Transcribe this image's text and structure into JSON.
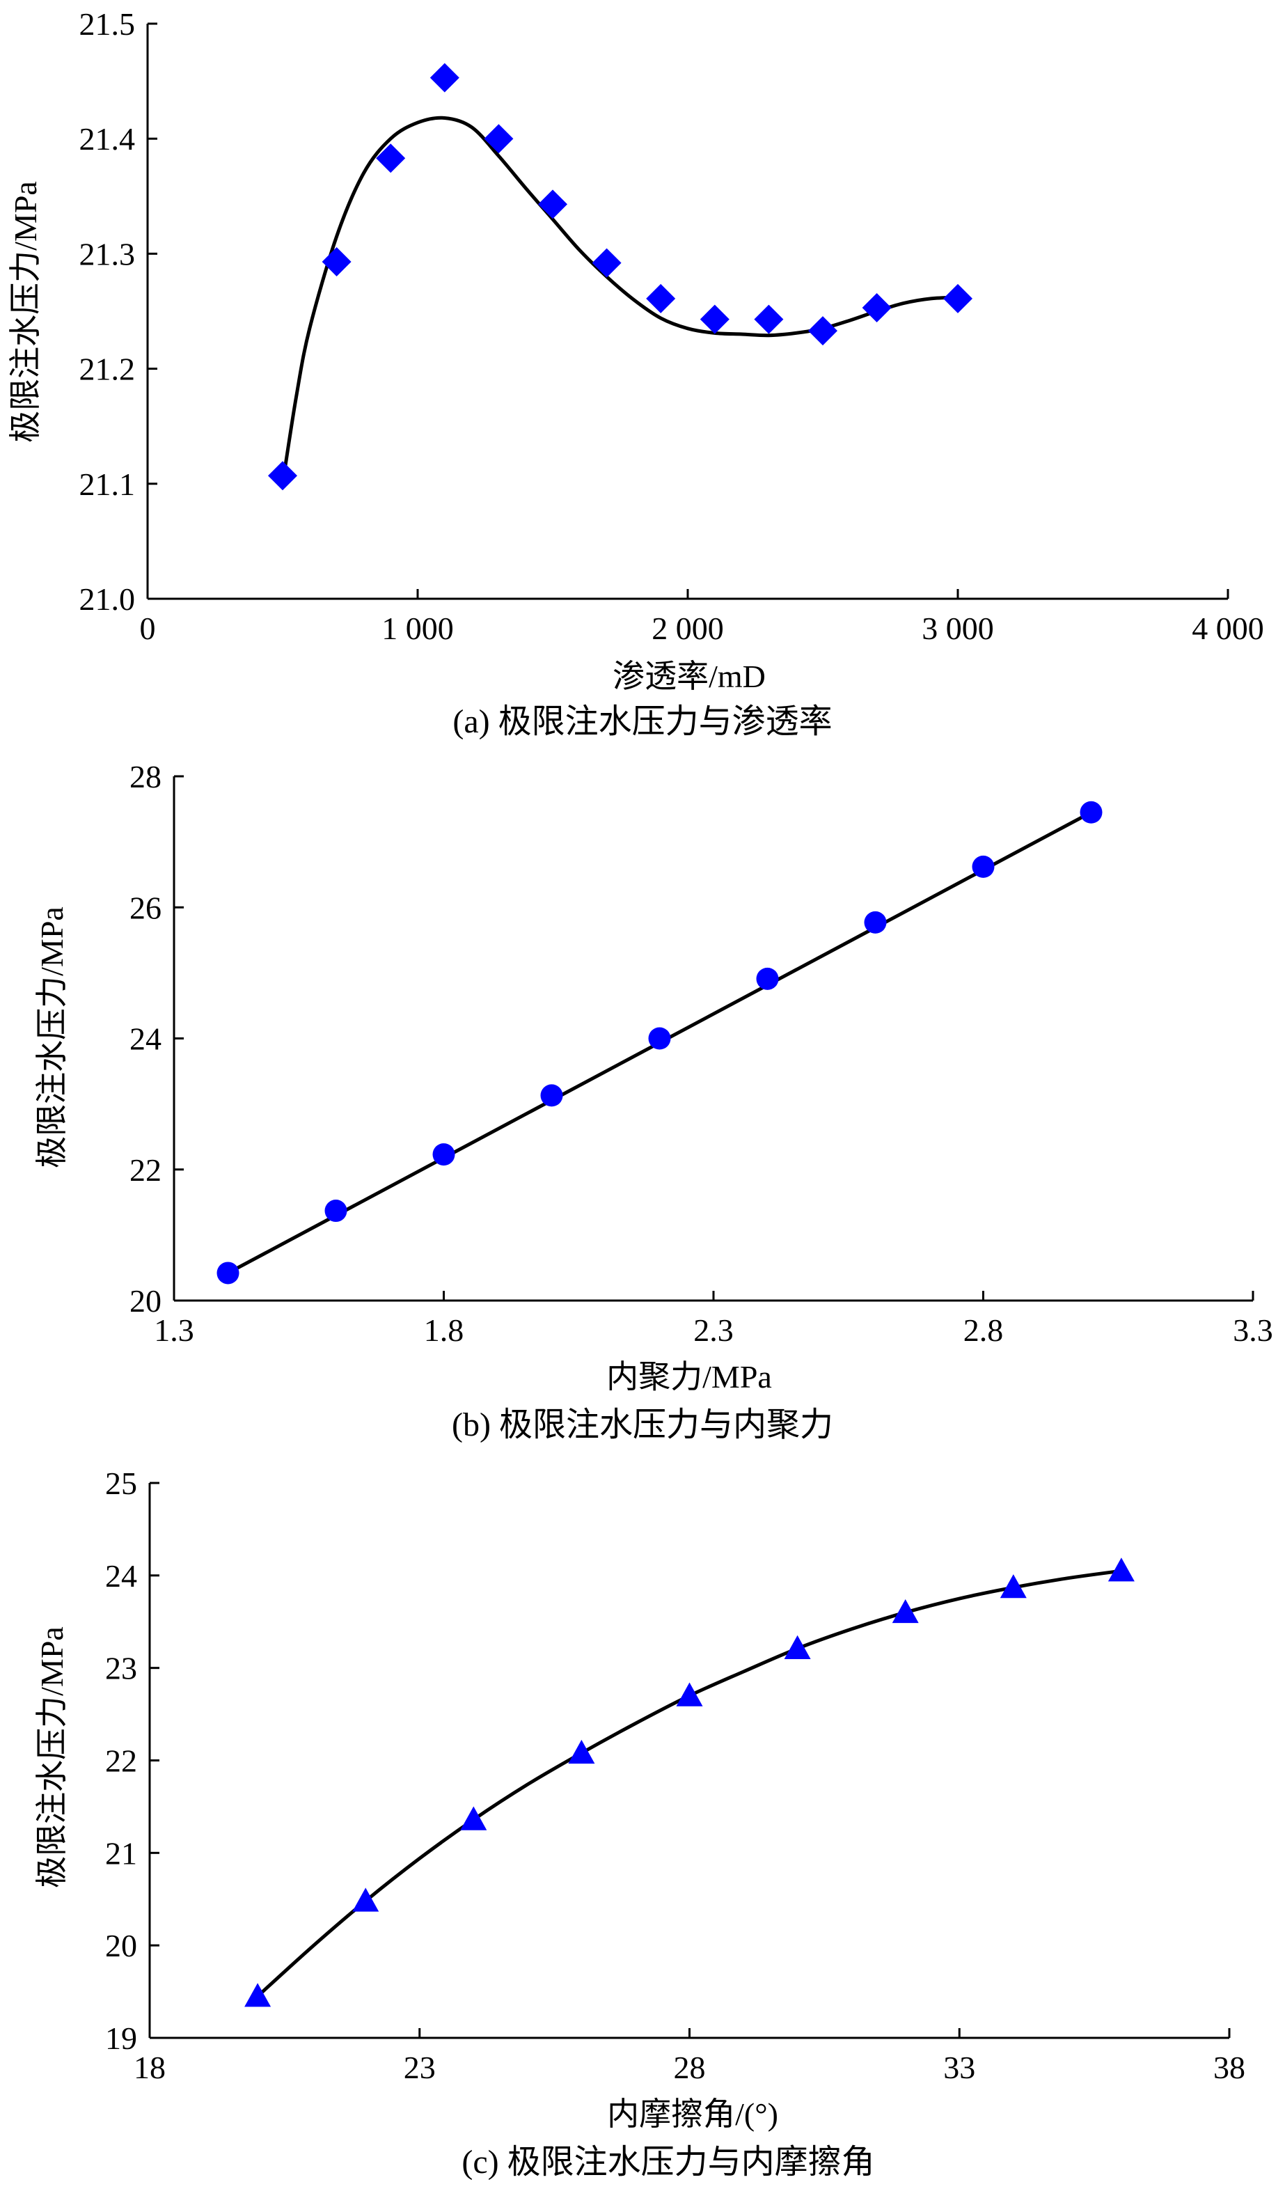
{
  "figure": {
    "marker_color": "#0000ff",
    "line_color": "#000000"
  },
  "chart_data": [
    {
      "type": "scatter",
      "marker": "diamond",
      "caption": "(a) 极限注水压力与渗透率",
      "xlabel": "渗透率/mD",
      "ylabel": "极限注水压力/MPa",
      "xlim": [
        0,
        4000
      ],
      "ylim": [
        21.0,
        21.5
      ],
      "xticks": [
        0,
        1000,
        2000,
        3000,
        4000
      ],
      "xtick_labels": [
        "0",
        "1 000",
        "2 000",
        "3 000",
        "4 000"
      ],
      "yticks": [
        21.0,
        21.1,
        21.2,
        21.3,
        21.4,
        21.5
      ],
      "ytick_labels": [
        "21.0",
        "21.1",
        "21.2",
        "21.3",
        "21.4",
        "21.5"
      ],
      "points": {
        "x": [
          500,
          700,
          900,
          1100,
          1300,
          1500,
          1700,
          1900,
          2100,
          2300,
          2500,
          2700,
          3000
        ],
        "y": [
          21.107,
          21.293,
          21.383,
          21.453,
          21.4,
          21.343,
          21.292,
          21.261,
          21.243,
          21.243,
          21.233,
          21.253,
          21.261
        ]
      },
      "trend_line": {
        "x": [
          500,
          550,
          600,
          700,
          800,
          900,
          1000,
          1100,
          1200,
          1300,
          1400,
          1500,
          1600,
          1700,
          1800,
          1900,
          2000,
          2100,
          2200,
          2300,
          2400,
          2500,
          2600,
          2700,
          2800,
          2900,
          3000
        ],
        "y": [
          21.1,
          21.175,
          21.235,
          21.315,
          21.37,
          21.4,
          21.414,
          21.418,
          21.41,
          21.385,
          21.357,
          21.33,
          21.303,
          21.28,
          21.26,
          21.244,
          21.235,
          21.231,
          21.23,
          21.229,
          21.231,
          21.235,
          21.242,
          21.25,
          21.257,
          21.261,
          21.262
        ]
      },
      "grid": false
    },
    {
      "type": "scatter",
      "marker": "circle",
      "caption": "(b) 极限注水压力与内聚力",
      "xlabel": "内聚力/MPa",
      "ylabel": "极限注水压力/MPa",
      "xlim": [
        1.3,
        3.3
      ],
      "ylim": [
        20,
        28
      ],
      "xticks": [
        1.3,
        1.8,
        2.3,
        2.8,
        3.3
      ],
      "xtick_labels": [
        "1.3",
        "1.8",
        "2.3",
        "2.8",
        "3.3"
      ],
      "yticks": [
        20,
        22,
        24,
        26,
        28
      ],
      "ytick_labels": [
        "20",
        "22",
        "24",
        "26",
        "28"
      ],
      "points": {
        "x": [
          1.4,
          1.6,
          1.8,
          2.0,
          2.2,
          2.4,
          2.6,
          2.8,
          3.0
        ],
        "y": [
          20.42,
          21.37,
          22.23,
          23.13,
          24.0,
          24.91,
          25.77,
          26.62,
          27.45
        ]
      },
      "trend_line": {
        "x": [
          1.4,
          3.0
        ],
        "y": [
          20.42,
          27.45
        ]
      },
      "grid": false
    },
    {
      "type": "scatter",
      "marker": "triangle",
      "caption": "(c) 极限注水压力与内摩擦角",
      "xlabel": "内摩擦角/(°)",
      "ylabel": "极限注水压力/MPa",
      "xlim": [
        18,
        38
      ],
      "ylim": [
        19,
        25
      ],
      "xticks": [
        18,
        23,
        28,
        33,
        38
      ],
      "xtick_labels": [
        "18",
        "23",
        "28",
        "33",
        "38"
      ],
      "yticks": [
        19,
        20,
        21,
        22,
        23,
        24,
        25
      ],
      "ytick_labels": [
        "19",
        "20",
        "21",
        "22",
        "23",
        "24",
        "25"
      ],
      "points": {
        "x": [
          20,
          22,
          24,
          26,
          28,
          30,
          32,
          34,
          36
        ],
        "y": [
          19.45,
          20.48,
          21.36,
          22.08,
          22.7,
          23.21,
          23.6,
          23.87,
          24.05
        ]
      },
      "trend_line": {
        "x": [
          20,
          21,
          22,
          23,
          24,
          25,
          26,
          27,
          28,
          29,
          30,
          31,
          32,
          33,
          34,
          35,
          36
        ],
        "y": [
          19.45,
          19.98,
          20.48,
          20.94,
          21.36,
          21.74,
          22.08,
          22.4,
          22.7,
          22.96,
          23.21,
          23.42,
          23.6,
          23.75,
          23.87,
          23.97,
          24.05
        ]
      },
      "grid": false
    }
  ]
}
